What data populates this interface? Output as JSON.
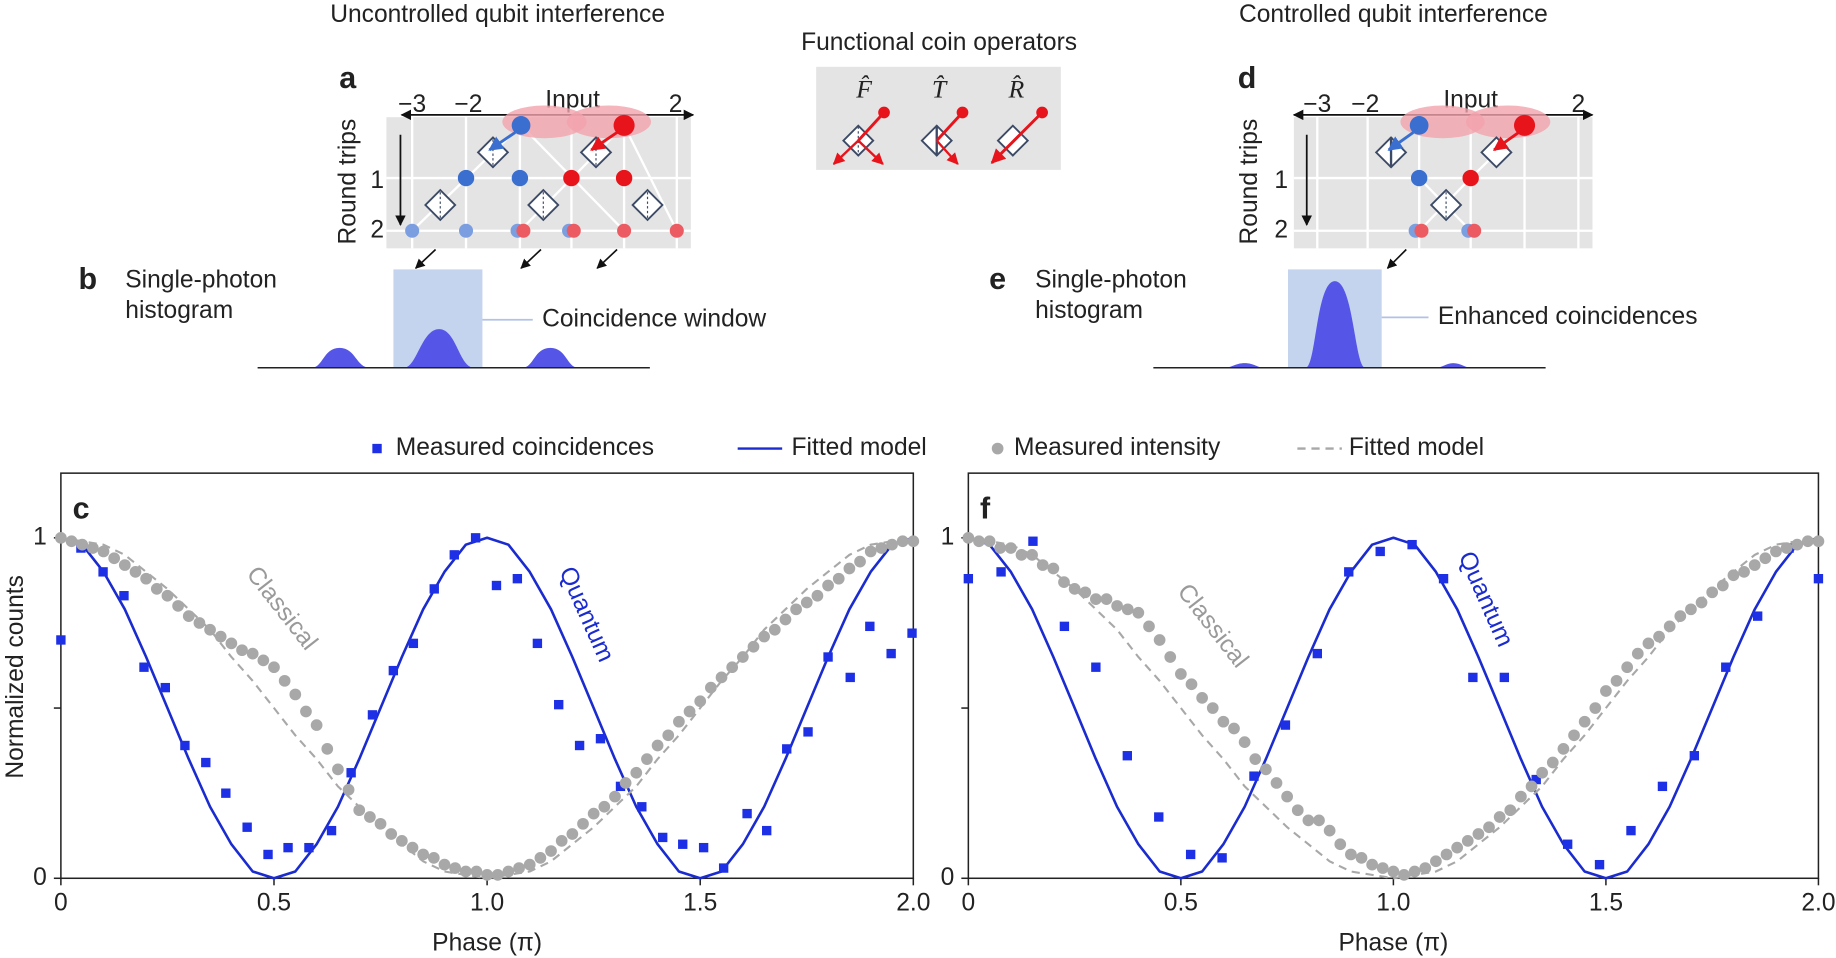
{
  "titles": [
    "Uncontrolled qubit interference",
    "Controlled qubit interference"
  ],
  "coin_operators": {
    "title": "Functional coin operators",
    "symbols": [
      "F̂",
      "T̂",
      "R̂"
    ]
  },
  "diagram_a": {
    "label": "a",
    "axis_labels": [
      "−3",
      "−2",
      "2"
    ],
    "input": "Input",
    "ylabel": "Round trips",
    "rows": [
      "1",
      "2"
    ]
  },
  "diagram_d": {
    "label": "d",
    "axis_labels": [
      "−3",
      "−2",
      "2"
    ],
    "input": "Input",
    "ylabel": "Round trips",
    "rows": [
      "1",
      "2"
    ]
  },
  "histogram_b": {
    "label": "b",
    "title_lines": [
      "Single-photon",
      "histogram"
    ],
    "note": "Coincidence window"
  },
  "histogram_e": {
    "label": "e",
    "title_lines": [
      "Single-photon",
      "histogram"
    ],
    "note": "Enhanced coincidences"
  },
  "chart_data": [
    {
      "type": "scatter",
      "panel_label": "c",
      "ylabel": "Normalized counts",
      "xlabel": "Phase (π)",
      "annotations": [
        "Classical",
        "Quantum"
      ],
      "xlim": [
        0,
        2
      ],
      "ylim": [
        0,
        1.19
      ],
      "xticks": [
        0,
        0.5,
        {
          "value": 1,
          "label": "1.0"
        },
        1.5,
        {
          "value": 2,
          "label": "2.0"
        }
      ],
      "yticks": [
        0,
        1
      ],
      "yminorticks": [
        0.5
      ],
      "series": [
        {
          "name": "Measured coincidences",
          "color": "#1e30e6",
          "marker": "square",
          "x": [
            0,
            0.047,
            0.099,
            0.148,
            0.195,
            0.245,
            0.291,
            0.34,
            0.387,
            0.437,
            0.486,
            0.533,
            0.582,
            0.635,
            0.681,
            0.731,
            0.78,
            0.827,
            0.876,
            0.923,
            0.973,
            1.022,
            1.071,
            1.118,
            1.168,
            1.217,
            1.266,
            1.313,
            1.363,
            1.412,
            1.459,
            1.508,
            1.555,
            1.61,
            1.656,
            1.703,
            1.753,
            1.8,
            1.852,
            1.898,
            1.948,
            1.997
          ],
          "values": [
            0.7,
            0.97,
            0.9,
            0.83,
            0.62,
            0.56,
            0.39,
            0.34,
            0.25,
            0.15,
            0.07,
            0.09,
            0.09,
            0.14,
            0.31,
            0.48,
            0.61,
            0.69,
            0.85,
            0.95,
            1.0,
            0.86,
            0.88,
            0.69,
            0.51,
            0.39,
            0.41,
            0.27,
            0.21,
            0.12,
            0.1,
            0.09,
            0.03,
            0.19,
            0.14,
            0.38,
            0.43,
            0.65,
            0.59,
            0.74,
            0.66,
            0.72
          ]
        },
        {
          "name": "Fitted model",
          "color": "#1a2bd0",
          "style": "solid",
          "x": [
            0,
            0.05,
            0.1,
            0.15,
            0.2,
            0.25,
            0.3,
            0.35,
            0.4,
            0.45,
            0.5,
            0.55,
            0.6,
            0.65,
            0.7,
            0.75,
            0.8,
            0.85,
            0.9,
            0.95,
            1,
            1.05,
            1.1,
            1.15,
            1.2,
            1.25,
            1.3,
            1.35,
            1.4,
            1.45,
            1.5,
            1.55,
            1.6,
            1.65,
            1.7,
            1.75,
            1.8,
            1.85,
            1.9,
            1.95,
            2
          ],
          "values": [
            1,
            0.98,
            0.9,
            0.79,
            0.65,
            0.5,
            0.35,
            0.21,
            0.1,
            0.02,
            0,
            0.02,
            0.1,
            0.21,
            0.35,
            0.5,
            0.65,
            0.79,
            0.9,
            0.98,
            1,
            0.98,
            0.9,
            0.79,
            0.65,
            0.5,
            0.35,
            0.21,
            0.1,
            0.02,
            0,
            0.02,
            0.1,
            0.21,
            0.35,
            0.5,
            0.65,
            0.79,
            0.9,
            0.98,
            1
          ]
        },
        {
          "name": "Measured intensity",
          "color": "#a8a8a8",
          "marker": "circle",
          "x": [
            0,
            0.025,
            0.05,
            0.075,
            0.1,
            0.125,
            0.15,
            0.175,
            0.2,
            0.225,
            0.25,
            0.275,
            0.3,
            0.325,
            0.35,
            0.375,
            0.4,
            0.425,
            0.45,
            0.475,
            0.5,
            0.525,
            0.55,
            0.575,
            0.6,
            0.625,
            0.65,
            0.675,
            0.7,
            0.725,
            0.75,
            0.775,
            0.8,
            0.825,
            0.85,
            0.875,
            0.9,
            0.925,
            0.95,
            0.975,
            1,
            1.025,
            1.05,
            1.075,
            1.1,
            1.125,
            1.15,
            1.175,
            1.2,
            1.225,
            1.25,
            1.275,
            1.3,
            1.325,
            1.35,
            1.375,
            1.4,
            1.425,
            1.45,
            1.475,
            1.5,
            1.525,
            1.55,
            1.575,
            1.6,
            1.625,
            1.65,
            1.675,
            1.7,
            1.725,
            1.75,
            1.775,
            1.8,
            1.825,
            1.85,
            1.875,
            1.9,
            1.925,
            1.95,
            1.975,
            2
          ],
          "values": [
            1,
            0.99,
            0.98,
            0.97,
            0.96,
            0.94,
            0.92,
            0.9,
            0.88,
            0.85,
            0.83,
            0.8,
            0.77,
            0.75,
            0.73,
            0.71,
            0.69,
            0.67,
            0.66,
            0.64,
            0.62,
            0.58,
            0.54,
            0.49,
            0.45,
            0.38,
            0.32,
            0.26,
            0.2,
            0.18,
            0.16,
            0.13,
            0.11,
            0.09,
            0.07,
            0.06,
            0.04,
            0.03,
            0.02,
            0.02,
            0.01,
            0.01,
            0.02,
            0.03,
            0.04,
            0.06,
            0.08,
            0.11,
            0.13,
            0.16,
            0.19,
            0.21,
            0.24,
            0.28,
            0.31,
            0.35,
            0.39,
            0.42,
            0.46,
            0.49,
            0.52,
            0.56,
            0.59,
            0.62,
            0.65,
            0.68,
            0.71,
            0.73,
            0.76,
            0.79,
            0.81,
            0.83,
            0.86,
            0.88,
            0.91,
            0.93,
            0.96,
            0.97,
            0.98,
            0.99,
            0.99
          ]
        },
        {
          "name": "Fitted model",
          "color": "#a8a8a8",
          "style": "dashed",
          "x": [
            0,
            0.05,
            0.1,
            0.15,
            0.2,
            0.25,
            0.3,
            0.35,
            0.4,
            0.45,
            0.5,
            0.55,
            0.6,
            0.65,
            0.7,
            0.75,
            0.8,
            0.85,
            0.9,
            0.95,
            1,
            1.05,
            1.1,
            1.15,
            1.2,
            1.25,
            1.3,
            1.35,
            1.4,
            1.45,
            1.5,
            1.55,
            1.6,
            1.65,
            1.7,
            1.75,
            1.8,
            1.85,
            1.9,
            1.95,
            2
          ],
          "values": [
            1,
            0.99,
            0.98,
            0.95,
            0.9,
            0.85,
            0.79,
            0.73,
            0.65,
            0.58,
            0.5,
            0.42,
            0.35,
            0.27,
            0.21,
            0.15,
            0.1,
            0.05,
            0.02,
            0.01,
            0,
            0.01,
            0.02,
            0.05,
            0.1,
            0.15,
            0.21,
            0.27,
            0.35,
            0.42,
            0.5,
            0.58,
            0.65,
            0.73,
            0.79,
            0.85,
            0.9,
            0.95,
            0.98,
            0.99,
            1
          ]
        }
      ]
    },
    {
      "type": "scatter",
      "panel_label": "f",
      "xlabel": "Phase (π)",
      "annotations": [
        "Classical",
        "Quantum"
      ],
      "xlim": [
        0,
        2
      ],
      "ylim": [
        0,
        1.19
      ],
      "xticks": [
        0,
        0.5,
        {
          "value": 1,
          "label": "1.0"
        },
        1.5,
        {
          "value": 2,
          "label": "2.0"
        }
      ],
      "yticks": [
        0,
        1
      ],
      "yminorticks": [
        0.5
      ],
      "series": [
        {
          "color": "#1e30e6",
          "marker": "square",
          "x": [
            0,
            0.077,
            0.152,
            0.226,
            0.3,
            0.374,
            0.448,
            0.523,
            0.597,
            0.672,
            0.746,
            0.821,
            0.895,
            0.969,
            1.044,
            1.118,
            1.187,
            1.261,
            1.336,
            1.41,
            1.485,
            1.559,
            1.633,
            1.708,
            1.782,
            1.857,
            1.931,
            2
          ],
          "values": [
            0.88,
            0.9,
            0.99,
            0.74,
            0.62,
            0.36,
            0.18,
            0.07,
            0.06,
            0.3,
            0.45,
            0.66,
            0.9,
            0.96,
            0.98,
            0.88,
            0.59,
            0.59,
            0.29,
            0.1,
            0.04,
            0.14,
            0.27,
            0.36,
            0.62,
            0.77,
            0.97,
            0.88
          ]
        },
        {
          "color": "#1a2bd0",
          "style": "solid",
          "x": [
            0,
            0.05,
            0.1,
            0.15,
            0.2,
            0.25,
            0.3,
            0.35,
            0.4,
            0.45,
            0.5,
            0.55,
            0.6,
            0.65,
            0.7,
            0.75,
            0.8,
            0.85,
            0.9,
            0.95,
            1,
            1.05,
            1.1,
            1.15,
            1.2,
            1.25,
            1.3,
            1.35,
            1.4,
            1.45,
            1.5,
            1.55,
            1.6,
            1.65,
            1.7,
            1.75,
            1.8,
            1.85,
            1.9,
            1.95,
            2
          ],
          "values": [
            1,
            0.98,
            0.9,
            0.79,
            0.65,
            0.5,
            0.35,
            0.21,
            0.1,
            0.02,
            0,
            0.02,
            0.1,
            0.21,
            0.35,
            0.5,
            0.65,
            0.79,
            0.9,
            0.98,
            1,
            0.98,
            0.9,
            0.79,
            0.65,
            0.5,
            0.35,
            0.21,
            0.1,
            0.02,
            0,
            0.02,
            0.1,
            0.21,
            0.35,
            0.5,
            0.65,
            0.79,
            0.9,
            0.98,
            1
          ]
        },
        {
          "color": "#a8a8a8",
          "marker": "circle",
          "x": [
            0,
            0.025,
            0.05,
            0.075,
            0.1,
            0.125,
            0.15,
            0.175,
            0.2,
            0.225,
            0.25,
            0.275,
            0.3,
            0.325,
            0.35,
            0.375,
            0.4,
            0.425,
            0.45,
            0.475,
            0.5,
            0.525,
            0.55,
            0.575,
            0.6,
            0.625,
            0.65,
            0.675,
            0.7,
            0.725,
            0.75,
            0.775,
            0.8,
            0.825,
            0.85,
            0.875,
            0.9,
            0.925,
            0.95,
            0.975,
            1,
            1.025,
            1.05,
            1.075,
            1.1,
            1.125,
            1.15,
            1.175,
            1.2,
            1.225,
            1.25,
            1.275,
            1.3,
            1.325,
            1.35,
            1.375,
            1.4,
            1.425,
            1.45,
            1.475,
            1.5,
            1.525,
            1.55,
            1.575,
            1.6,
            1.625,
            1.65,
            1.675,
            1.7,
            1.725,
            1.75,
            1.775,
            1.8,
            1.825,
            1.85,
            1.875,
            1.9,
            1.925,
            1.95,
            1.975,
            2
          ],
          "values": [
            1,
            0.99,
            0.99,
            0.97,
            0.97,
            0.95,
            0.95,
            0.92,
            0.91,
            0.87,
            0.85,
            0.84,
            0.82,
            0.82,
            0.8,
            0.79,
            0.78,
            0.74,
            0.7,
            0.65,
            0.6,
            0.57,
            0.53,
            0.5,
            0.46,
            0.44,
            0.4,
            0.35,
            0.32,
            0.28,
            0.24,
            0.2,
            0.17,
            0.17,
            0.14,
            0.1,
            0.07,
            0.06,
            0.04,
            0.03,
            0.02,
            0.01,
            0.02,
            0.03,
            0.05,
            0.07,
            0.09,
            0.11,
            0.13,
            0.15,
            0.18,
            0.2,
            0.24,
            0.27,
            0.31,
            0.34,
            0.38,
            0.42,
            0.46,
            0.5,
            0.55,
            0.58,
            0.62,
            0.66,
            0.69,
            0.71,
            0.74,
            0.77,
            0.79,
            0.81,
            0.84,
            0.86,
            0.89,
            0.9,
            0.92,
            0.94,
            0.96,
            0.97,
            0.98,
            0.99,
            0.99
          ]
        },
        {
          "color": "#a8a8a8",
          "style": "dashed",
          "x": [
            0,
            0.05,
            0.1,
            0.15,
            0.2,
            0.25,
            0.3,
            0.35,
            0.4,
            0.45,
            0.5,
            0.55,
            0.6,
            0.65,
            0.7,
            0.75,
            0.8,
            0.85,
            0.9,
            0.95,
            1,
            1.05,
            1.1,
            1.15,
            1.2,
            1.25,
            1.3,
            1.35,
            1.4,
            1.45,
            1.5,
            1.55,
            1.6,
            1.65,
            1.7,
            1.75,
            1.8,
            1.85,
            1.9,
            1.95,
            2
          ],
          "values": [
            1,
            0.99,
            0.98,
            0.95,
            0.9,
            0.85,
            0.79,
            0.73,
            0.65,
            0.58,
            0.5,
            0.42,
            0.35,
            0.27,
            0.21,
            0.15,
            0.1,
            0.05,
            0.02,
            0.01,
            0,
            0.01,
            0.02,
            0.05,
            0.1,
            0.15,
            0.21,
            0.27,
            0.35,
            0.42,
            0.5,
            0.58,
            0.65,
            0.73,
            0.79,
            0.85,
            0.9,
            0.95,
            0.98,
            0.99,
            1
          ]
        }
      ]
    }
  ]
}
